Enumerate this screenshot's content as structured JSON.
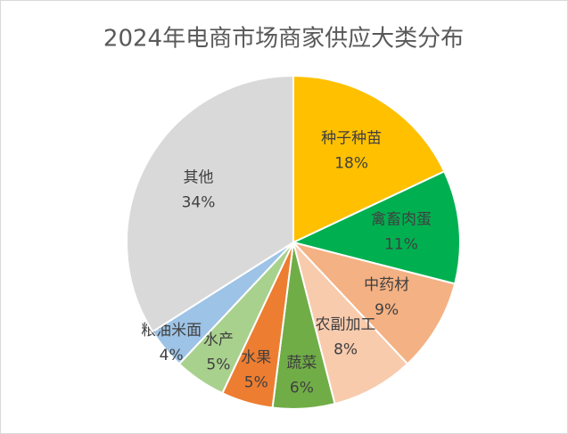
{
  "chart_data": {
    "type": "pie",
    "title": "2024年电商市场商家供应大类分布",
    "categories": [
      "种子种苗",
      "禽畜肉蛋",
      "中药材",
      "农副加工",
      "蔬菜",
      "水果",
      "水产",
      "粮油米面",
      "其他"
    ],
    "values": [
      18,
      11,
      9,
      8,
      6,
      5,
      5,
      4,
      34
    ],
    "value_labels": [
      "18%",
      "11%",
      "9%",
      "8%",
      "6%",
      "5%",
      "5%",
      "4%",
      "34%"
    ],
    "colors": [
      "#FFC000",
      "#00B050",
      "#F4B183",
      "#F8CBAD",
      "#70AD47",
      "#ED7D31",
      "#A9D18E",
      "#9DC3E6",
      "#D9D9D9"
    ]
  }
}
